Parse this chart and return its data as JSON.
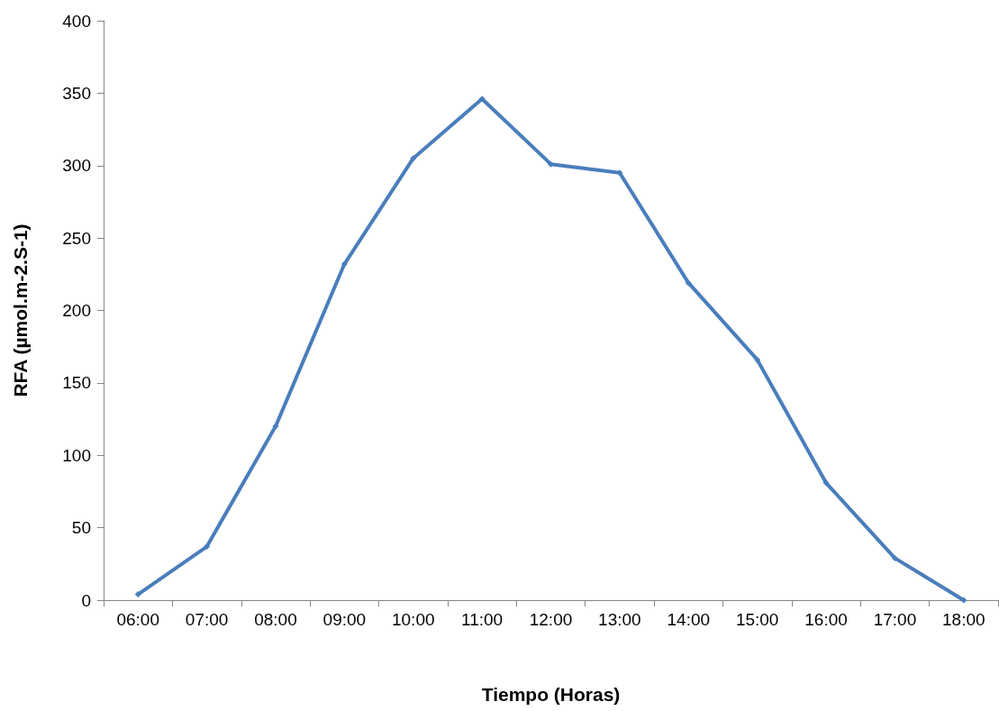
{
  "chart_data": {
    "type": "line",
    "xlabel": "Tiempo (Horas)",
    "ylabel": "RFA (µmol.m-2.S-1)",
    "categories": [
      "06:00",
      "07:00",
      "08:00",
      "09:00",
      "10:00",
      "11:00",
      "12:00",
      "13:00",
      "14:00",
      "15:00",
      "16:00",
      "17:00",
      "18:00"
    ],
    "series": [
      {
        "color": "#4a7ebb",
        "values": [
          4,
          37,
          120,
          232,
          305,
          346,
          301,
          295,
          219,
          166,
          81,
          29,
          0
        ]
      }
    ],
    "ylim": [
      0,
      400
    ],
    "yticks": [
      0,
      50,
      100,
      150,
      200,
      250,
      300,
      350,
      400
    ],
    "grid": false,
    "marker": "diamond",
    "line_style": "solid"
  }
}
